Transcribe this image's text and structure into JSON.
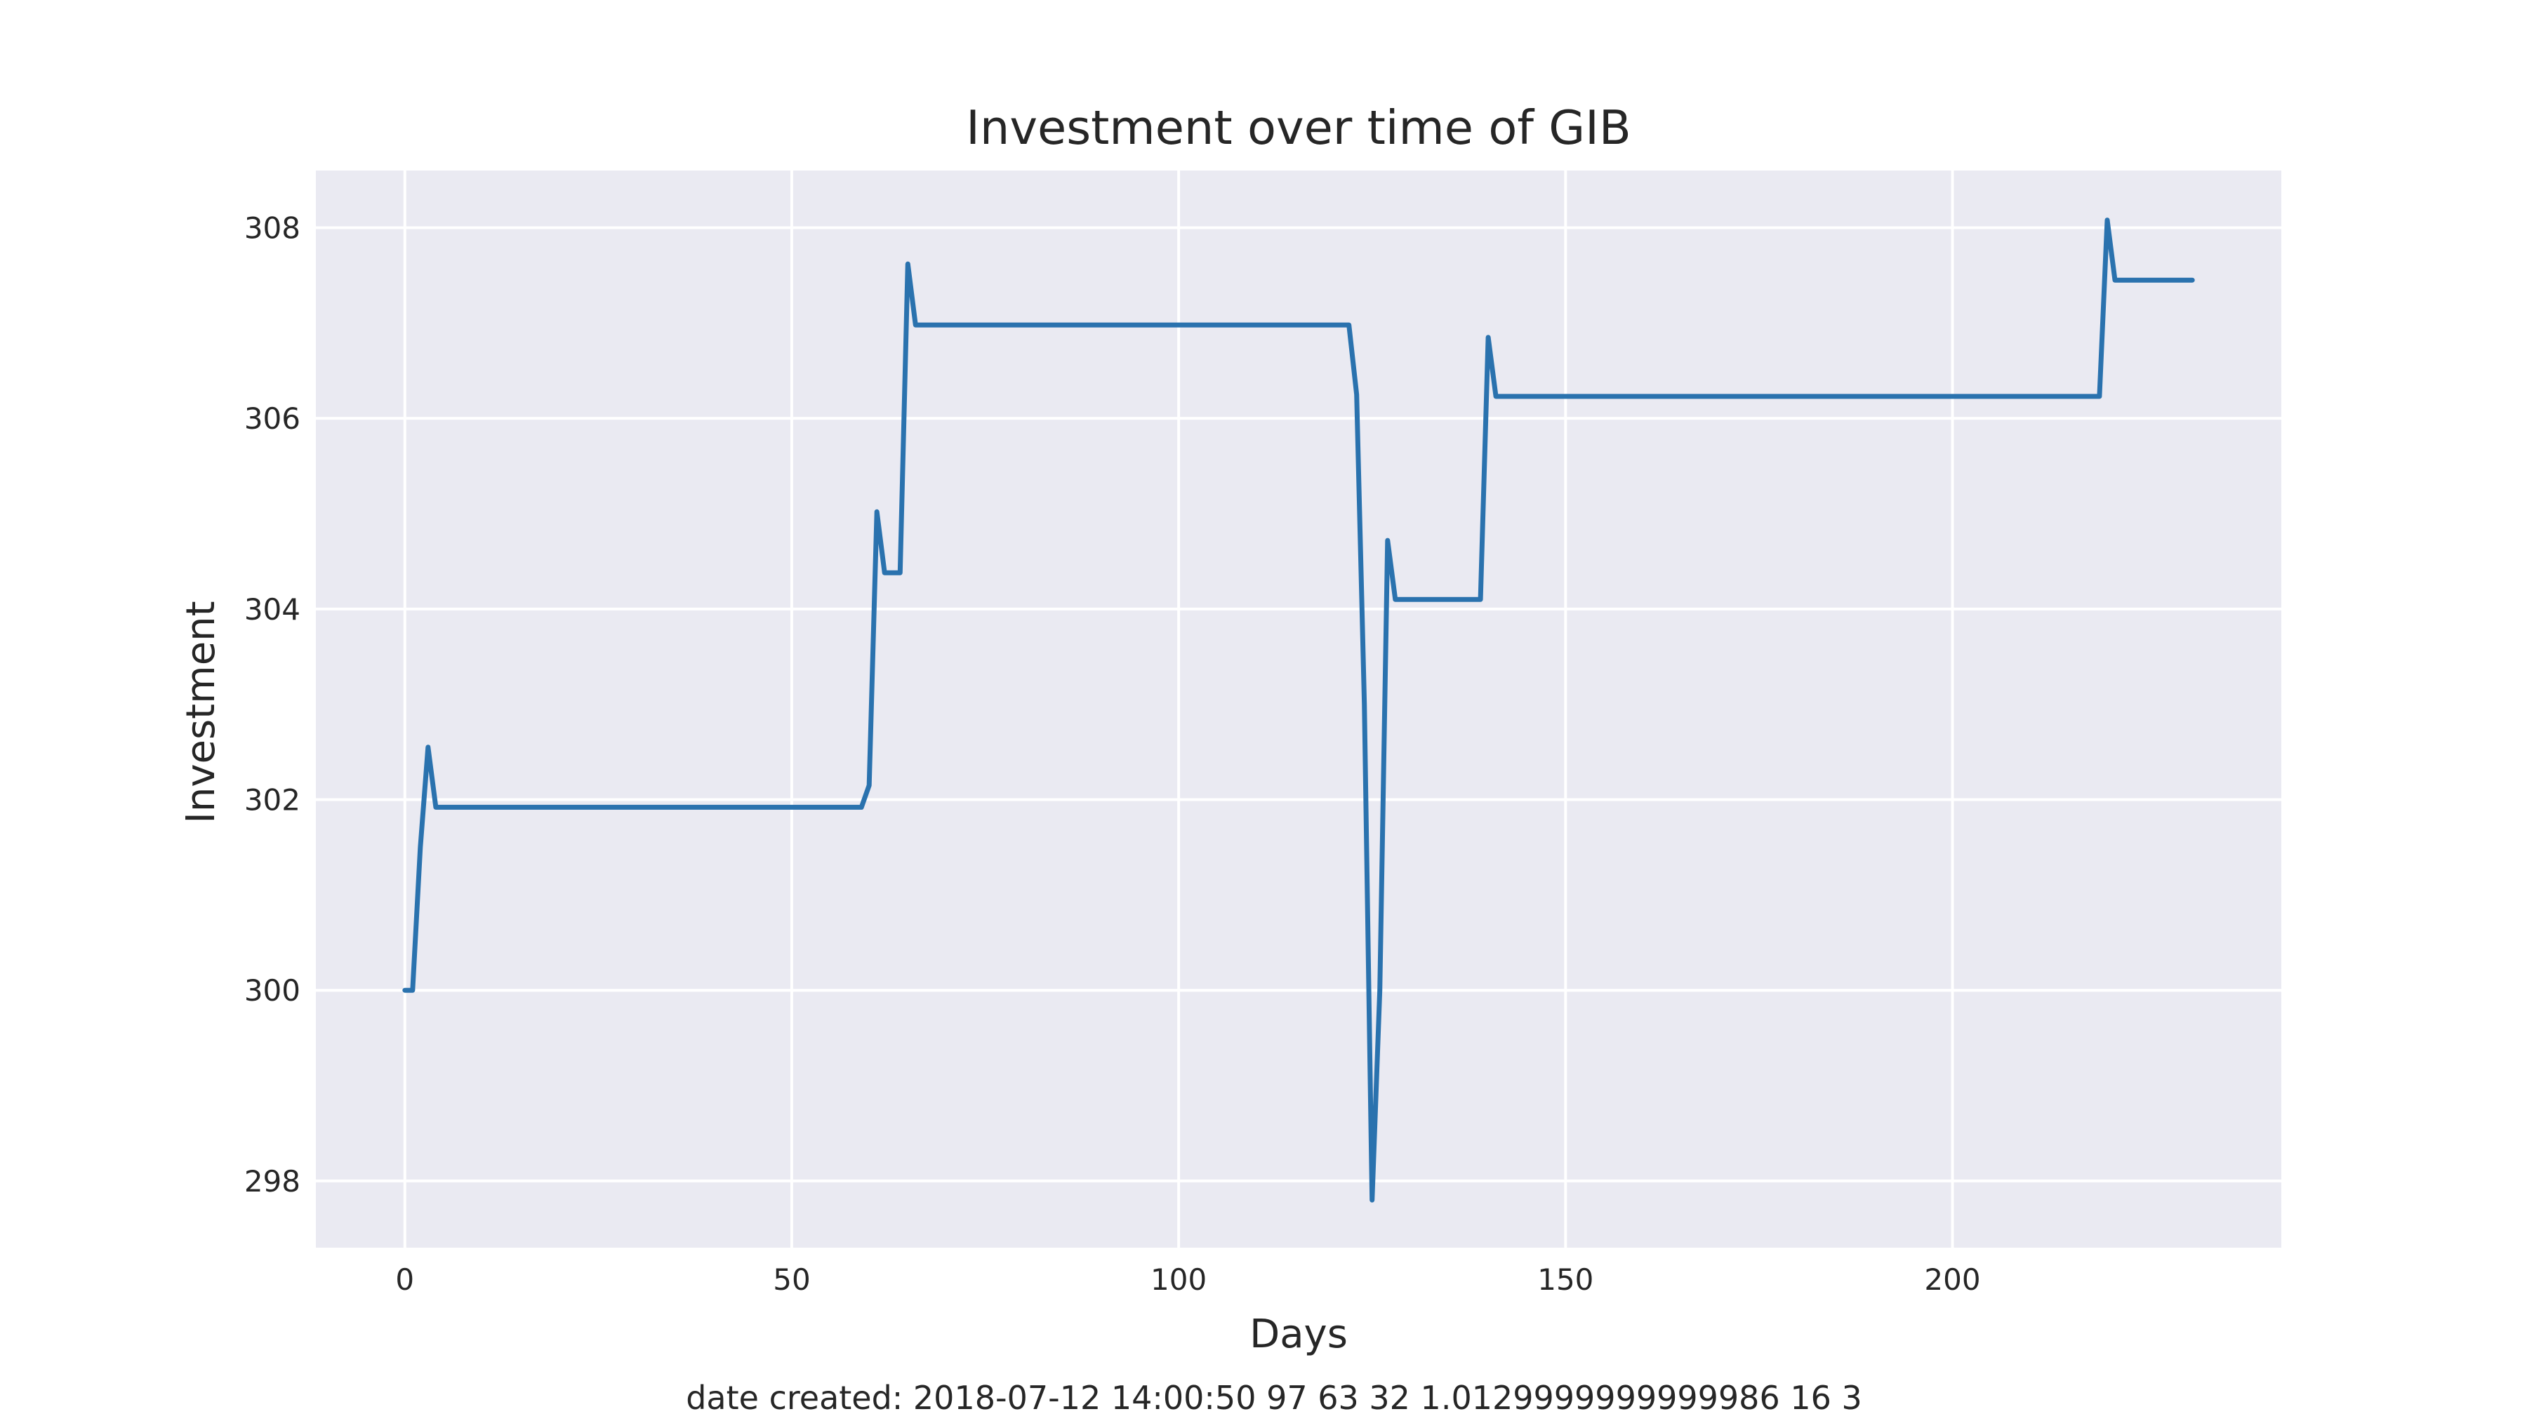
{
  "chart_data": {
    "type": "line",
    "title": "Investment over time of GIB",
    "xlabel": "Days",
    "ylabel": "Investment",
    "xlim": [
      -11.5,
      242.5
    ],
    "ylim": [
      297.3,
      308.6
    ],
    "xticks": [
      0,
      50,
      100,
      150,
      200
    ],
    "yticks": [
      298,
      300,
      302,
      304,
      306,
      308
    ],
    "grid": true,
    "background": "#eaeaf2",
    "grid_color": "#ffffff",
    "line_color": "#2a72ae",
    "legend": "none",
    "series": [
      {
        "x": [
          0,
          1,
          2,
          3,
          4,
          59,
          60,
          61,
          62,
          64,
          65,
          66,
          122,
          123,
          124,
          125,
          126,
          127,
          128,
          139,
          140,
          141,
          219,
          220,
          221,
          231
        ],
        "y": [
          300.0,
          300.0,
          301.5,
          302.55,
          301.92,
          301.92,
          302.15,
          305.02,
          304.38,
          304.38,
          307.62,
          306.98,
          306.98,
          306.25,
          303.0,
          297.8,
          300.0,
          304.72,
          304.1,
          304.1,
          306.85,
          306.23,
          306.23,
          308.08,
          307.45,
          307.45
        ]
      }
    ],
    "caption": "date created: 2018-07-12 14:00:50 97 63 32 1.0129999999999986 16 3"
  }
}
